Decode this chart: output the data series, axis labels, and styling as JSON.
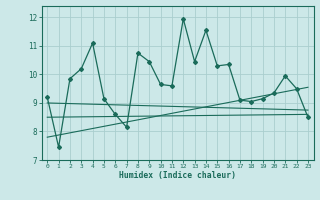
{
  "xlabel": "Humidex (Indice chaleur)",
  "bg_color": "#cce8e8",
  "line_color": "#1a6b5a",
  "grid_color": "#aacece",
  "xlim": [
    -0.5,
    23.5
  ],
  "ylim": [
    7.0,
    12.4
  ],
  "yticks": [
    7,
    8,
    9,
    10,
    11,
    12
  ],
  "xticks": [
    0,
    1,
    2,
    3,
    4,
    5,
    6,
    7,
    8,
    9,
    10,
    11,
    12,
    13,
    14,
    15,
    16,
    17,
    18,
    19,
    20,
    21,
    22,
    23
  ],
  "main_data_x": [
    0,
    1,
    2,
    3,
    4,
    5,
    6,
    7,
    8,
    9,
    10,
    11,
    12,
    13,
    14,
    15,
    16,
    17,
    18,
    19,
    20,
    21,
    22,
    23
  ],
  "main_data_y": [
    9.2,
    7.45,
    9.85,
    10.2,
    11.1,
    9.15,
    8.6,
    8.15,
    10.75,
    10.45,
    9.65,
    9.6,
    11.95,
    10.45,
    11.55,
    10.3,
    10.35,
    9.1,
    9.05,
    9.15,
    9.35,
    9.95,
    9.5,
    8.5
  ],
  "trend1_x": [
    0,
    23
  ],
  "trend1_y": [
    7.8,
    9.55
  ],
  "trend2_x": [
    0,
    23
  ],
  "trend2_y": [
    9.0,
    8.75
  ],
  "trend3_x": [
    0,
    23
  ],
  "trend3_y": [
    8.5,
    8.6
  ]
}
